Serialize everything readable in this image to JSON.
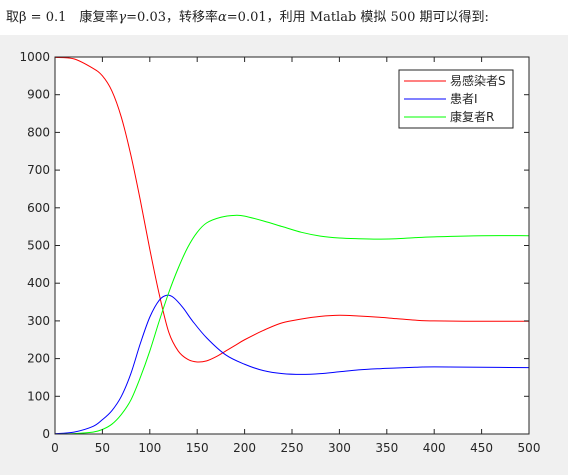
{
  "caption": {
    "p1": "取β",
    "p2": " = 0.1　康复率",
    "gamma_symbol": "γ",
    "p3": "=0.03，转移率",
    "alpha_symbol": "α",
    "p4": "=0.01，利用 Matlab 模拟 500 期可以得到:"
  },
  "chart_data": {
    "type": "line",
    "xlim": [
      0,
      500
    ],
    "ylim": [
      0,
      1000
    ],
    "xticks": [
      "0",
      "50",
      "100",
      "150",
      "200",
      "250",
      "300",
      "350",
      "400",
      "450",
      "500"
    ],
    "yticks": [
      "0",
      "100",
      "200",
      "300",
      "400",
      "500",
      "600",
      "700",
      "800",
      "900",
      "1000"
    ],
    "grid": false,
    "legend_position": "top-right",
    "series": [
      {
        "name": "易感染者S",
        "color": "#ff0000",
        "points": [
          [
            0,
            999
          ],
          [
            20,
            995
          ],
          [
            40,
            970
          ],
          [
            50,
            950
          ],
          [
            60,
            910
          ],
          [
            70,
            840
          ],
          [
            80,
            740
          ],
          [
            90,
            620
          ],
          [
            100,
            490
          ],
          [
            110,
            370
          ],
          [
            120,
            270
          ],
          [
            130,
            220
          ],
          [
            140,
            198
          ],
          [
            150,
            191
          ],
          [
            160,
            194
          ],
          [
            170,
            205
          ],
          [
            180,
            220
          ],
          [
            190,
            235
          ],
          [
            200,
            250
          ],
          [
            220,
            275
          ],
          [
            240,
            295
          ],
          [
            260,
            305
          ],
          [
            280,
            312
          ],
          [
            300,
            315
          ],
          [
            320,
            313
          ],
          [
            340,
            310
          ],
          [
            360,
            306
          ],
          [
            380,
            302
          ],
          [
            400,
            300
          ],
          [
            450,
            299
          ],
          [
            500,
            299
          ]
        ]
      },
      {
        "name": "患者I",
        "color": "#0000ff",
        "points": [
          [
            0,
            1
          ],
          [
            20,
            5
          ],
          [
            40,
            20
          ],
          [
            50,
            38
          ],
          [
            60,
            62
          ],
          [
            70,
            100
          ],
          [
            80,
            160
          ],
          [
            90,
            240
          ],
          [
            100,
            310
          ],
          [
            110,
            355
          ],
          [
            118,
            368
          ],
          [
            125,
            362
          ],
          [
            135,
            335
          ],
          [
            145,
            300
          ],
          [
            160,
            255
          ],
          [
            180,
            210
          ],
          [
            200,
            185
          ],
          [
            220,
            168
          ],
          [
            240,
            160
          ],
          [
            260,
            158
          ],
          [
            280,
            160
          ],
          [
            300,
            165
          ],
          [
            320,
            170
          ],
          [
            340,
            173
          ],
          [
            360,
            175
          ],
          [
            380,
            177
          ],
          [
            400,
            178
          ],
          [
            450,
            177
          ],
          [
            500,
            176
          ]
        ]
      },
      {
        "name": "康复者R",
        "color": "#00ff00",
        "points": [
          [
            0,
            0
          ],
          [
            20,
            1
          ],
          [
            40,
            5
          ],
          [
            50,
            12
          ],
          [
            60,
            26
          ],
          [
            70,
            52
          ],
          [
            80,
            90
          ],
          [
            90,
            150
          ],
          [
            100,
            220
          ],
          [
            110,
            300
          ],
          [
            120,
            375
          ],
          [
            130,
            440
          ],
          [
            140,
            495
          ],
          [
            150,
            535
          ],
          [
            160,
            560
          ],
          [
            175,
            575
          ],
          [
            190,
            580
          ],
          [
            200,
            578
          ],
          [
            220,
            565
          ],
          [
            240,
            550
          ],
          [
            260,
            535
          ],
          [
            280,
            525
          ],
          [
            300,
            520
          ],
          [
            320,
            518
          ],
          [
            340,
            517
          ],
          [
            360,
            518
          ],
          [
            380,
            521
          ],
          [
            400,
            523
          ],
          [
            450,
            526
          ],
          [
            500,
            526
          ]
        ]
      }
    ]
  }
}
